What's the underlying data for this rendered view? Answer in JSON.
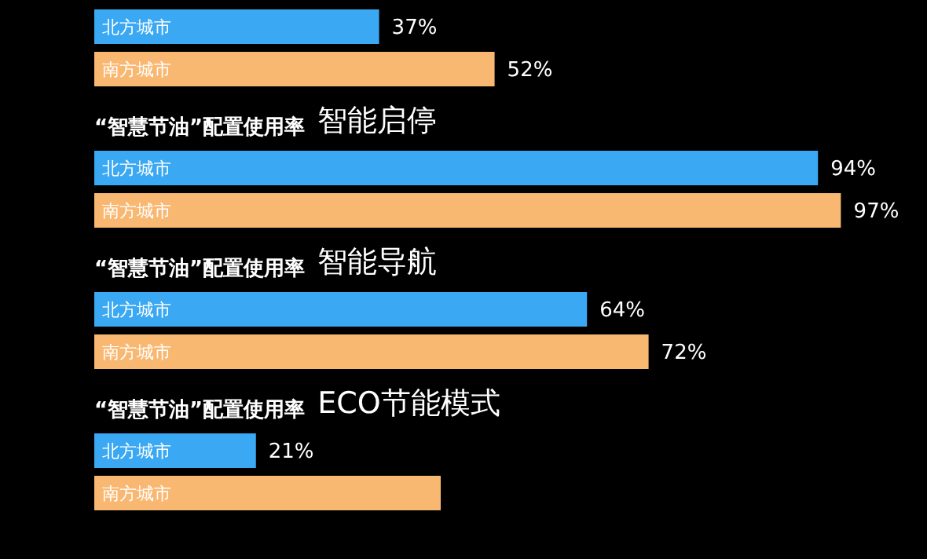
{
  "chart_data": [
    {
      "type": "bar",
      "orientation": "horizontal",
      "categories": [
        "北方城市",
        "南方城市"
      ],
      "values": [
        37,
        52
      ],
      "colors": [
        "#3aa8f2",
        "#f9b872"
      ],
      "value_labels": [
        "37%",
        "52%"
      ],
      "tick_labels": false
    },
    {
      "type": "bar",
      "orientation": "horizontal",
      "title": "“智慧节油”配置使用率 智能启停",
      "categories": [
        "北方城市",
        "南方城市"
      ],
      "values": [
        94,
        97
      ],
      "colors": [
        "#3aa8f2",
        "#f9b872"
      ],
      "value_labels": [
        "94%",
        "97%"
      ],
      "tick_labels": false
    },
    {
      "type": "bar",
      "orientation": "horizontal",
      "title": "“智慧节油”配置使用率 智能导航",
      "categories": [
        "北方城市",
        "南方城市"
      ],
      "values": [
        64,
        72
      ],
      "colors": [
        "#3aa8f2",
        "#f9b872"
      ],
      "value_labels": [
        "64%",
        "72%"
      ],
      "tick_labels": false
    },
    {
      "type": "bar",
      "orientation": "horizontal",
      "title": "“智慧节油”配置使用率 ECO节能模式",
      "categories": [
        "北方城市",
        "南方城市"
      ],
      "values": [
        21,
        45
      ],
      "colors": [
        "#3aa8f2",
        "#f9b872"
      ],
      "value_labels": [
        "21%",
        null
      ],
      "tick_labels": false
    }
  ]
}
